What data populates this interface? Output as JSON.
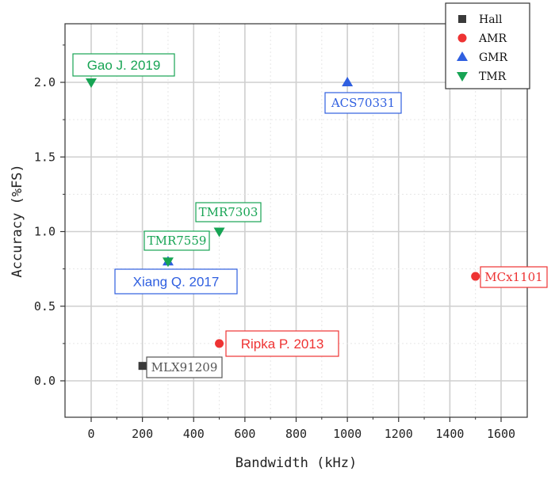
{
  "chart_data": {
    "type": "scatter",
    "xlabel": "Bandwidth (kHz)",
    "ylabel": "Accuracy (%FS)",
    "xlim": [
      -100,
      1700
    ],
    "ylim": [
      -0.25,
      2.25
    ],
    "x_ticks": [
      0,
      200,
      400,
      600,
      800,
      1000,
      1200,
      1400,
      1600
    ],
    "y_ticks": [
      0.0,
      0.5,
      1.0,
      1.5,
      2.0
    ],
    "x_tick_labels": [
      "0",
      "200",
      "400",
      "600",
      "800",
      "1000",
      "1200",
      "1400",
      "1600"
    ],
    "y_tick_labels": [
      "0.0",
      "0.5",
      "1.0",
      "1.5",
      "2.0"
    ],
    "grid": true,
    "legend_position": "top-right",
    "series": [
      {
        "name": "Hall",
        "marker": "square",
        "color": "#3a3a3a",
        "points": [
          {
            "x": 200,
            "y": 0.1,
            "label": "MLX91209"
          }
        ]
      },
      {
        "name": "AMR",
        "marker": "circle",
        "color": "#ee3333",
        "points": [
          {
            "x": 500,
            "y": 0.25,
            "label": "Ripka P. 2013"
          },
          {
            "x": 1500,
            "y": 0.7,
            "label": "MCx1101"
          }
        ]
      },
      {
        "name": "GMR",
        "marker": "triangle-up",
        "color": "#2f5fe0",
        "points": [
          {
            "x": 1000,
            "y": 2.0,
            "label": "ACS70331"
          },
          {
            "x": 300,
            "y": 0.8,
            "label": "Xiang Q. 2017"
          }
        ]
      },
      {
        "name": "TMR",
        "marker": "triangle-down",
        "color": "#17a454",
        "points": [
          {
            "x": 0,
            "y": 2.0,
            "label": "Gao J. 2019"
          },
          {
            "x": 500,
            "y": 1.0,
            "label": "TMR7303"
          },
          {
            "x": 300,
            "y": 0.8,
            "label": "TMR7559"
          }
        ]
      }
    ]
  },
  "annotations": [
    {
      "text": "Gao J. 2019",
      "color": "#17a454",
      "style": "sans"
    },
    {
      "text": "ACS70331",
      "color": "#2f5fe0",
      "style": "serif"
    },
    {
      "text": "TMR7303",
      "color": "#17a454",
      "style": "serif"
    },
    {
      "text": "TMR7559",
      "color": "#17a454",
      "style": "serif"
    },
    {
      "text": "Xiang Q. 2017",
      "color": "#2f5fe0",
      "style": "sans"
    },
    {
      "text": "MCx1101",
      "color": "#ee3333",
      "style": "serif"
    },
    {
      "text": "Ripka P. 2013",
      "color": "#ee3333",
      "style": "sans"
    },
    {
      "text": "MLX91209",
      "color": "#555555",
      "style": "serif"
    }
  ]
}
